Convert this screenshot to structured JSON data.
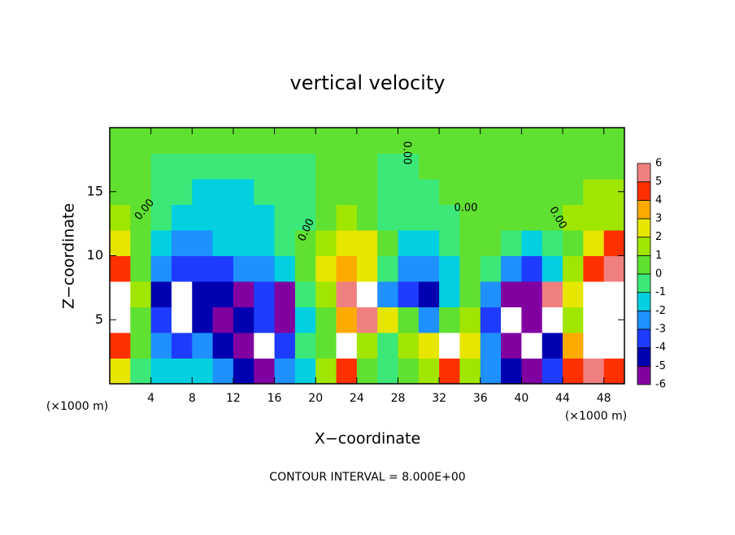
{
  "chart_data": {
    "type": "heatmap",
    "title": "vertical velocity",
    "x_label": "X−coordinate",
    "y_label": "Z−coordinate",
    "x_unit": "(×1000 m)",
    "y_unit": "(×1000 m)",
    "footer": "CONTOUR INTERVAL = 8.000E+00",
    "contour_labels": [
      "0.00",
      "0.00",
      "0.00",
      "0.00",
      "0.00"
    ],
    "xlim": [
      0,
      50
    ],
    "ylim": [
      0,
      20
    ],
    "xticks": [
      4,
      8,
      12,
      16,
      20,
      24,
      28,
      32,
      36,
      40,
      44,
      48
    ],
    "yticks": [
      5,
      10,
      15
    ],
    "x": [
      1,
      3,
      5,
      7,
      9,
      11,
      13,
      15,
      17,
      19,
      21,
      23,
      25,
      27,
      29,
      31,
      33,
      35,
      37,
      39,
      41,
      43,
      45,
      47,
      49
    ],
    "y": [
      1,
      3,
      5,
      7,
      9,
      11,
      13,
      15,
      17,
      19
    ],
    "values": [
      [
        3,
        0,
        -1,
        -1,
        -1,
        -2,
        -4,
        -6,
        -2,
        -1,
        2,
        5,
        1,
        0,
        1,
        2,
        5,
        2,
        -2,
        -4,
        -6,
        -3,
        5,
        6,
        5
      ],
      [
        5,
        1,
        -2,
        -3,
        -2,
        -4,
        -5,
        -7,
        -3,
        0,
        1,
        7,
        2,
        0,
        2,
        3,
        7,
        3,
        -2,
        -5,
        -8,
        -4,
        4,
        7,
        8
      ],
      [
        7,
        1,
        -3,
        -7,
        -4,
        -5,
        -4.5,
        -3,
        -5,
        -1,
        1,
        4,
        6,
        3,
        1,
        -2,
        1,
        2,
        -3,
        -7,
        -6,
        7,
        2,
        8,
        9
      ],
      [
        8,
        2,
        -4,
        -8,
        -4,
        -4.5,
        -5,
        -3,
        -5,
        0,
        2,
        6,
        8,
        -2,
        -3,
        -4,
        -1,
        1,
        -2,
        -5,
        -5,
        6,
        3,
        7,
        8
      ],
      [
        5,
        1,
        -2,
        -3,
        -3.5,
        -3,
        -2.5,
        -2,
        -1,
        1,
        3,
        4,
        3,
        0,
        -2,
        -2,
        -1,
        1,
        -0.5,
        -2,
        -3,
        -1,
        2,
        5,
        6
      ],
      [
        3,
        1,
        -1,
        -2,
        -2,
        -1.5,
        -1,
        -1,
        -0.5,
        0.5,
        2,
        3,
        2.5,
        1,
        -1,
        -1,
        0,
        1,
        0.5,
        -0.5,
        -1,
        0,
        1,
        3,
        4.5
      ],
      [
        1.5,
        0.5,
        -0.5,
        -1,
        -1.5,
        -1.5,
        -1,
        -1,
        -0.5,
        0,
        1,
        1.5,
        1,
        0,
        -0.5,
        -0.5,
        0,
        0.5,
        0.5,
        0.5,
        0.5,
        1,
        1.5,
        2,
        2
      ],
      [
        1,
        0.5,
        -0.5,
        -0.5,
        -1,
        -1,
        -1,
        -0.5,
        -0.5,
        0,
        0.5,
        0.5,
        0.5,
        0,
        -0.5,
        0,
        0.5,
        0.5,
        0.5,
        0.5,
        0.5,
        1,
        1,
        1.5,
        1.5
      ],
      [
        1,
        0.5,
        0,
        0,
        -0.5,
        -0.5,
        -0.5,
        0,
        0,
        0,
        0.5,
        0.5,
        0.5,
        0,
        0,
        0.5,
        0.5,
        0.5,
        0.5,
        0.5,
        0.5,
        0.5,
        1,
        1,
        1
      ],
      [
        1,
        1,
        0.5,
        0.5,
        0.5,
        0.5,
        0.5,
        0.5,
        0.5,
        0.5,
        0.5,
        0.5,
        0.5,
        0.5,
        0.5,
        0.5,
        0.5,
        0.5,
        0.5,
        0.5,
        0.5,
        0.5,
        0.5,
        0.5,
        0.5
      ]
    ],
    "colorbar_levels": [
      -6,
      -5,
      -4,
      -3,
      -2,
      -1,
      0,
      1,
      2,
      3,
      4,
      5,
      6
    ],
    "colorbar_colors": [
      "#8000a0",
      "#0000b0",
      "#1e3cff",
      "#1e90ff",
      "#00d0e0",
      "#3ce878",
      "#60e030",
      "#a0e600",
      "#e6e600",
      "#ffaa00",
      "#ff3000",
      "#f08080"
    ],
    "extreme_color": "#ffffff"
  }
}
